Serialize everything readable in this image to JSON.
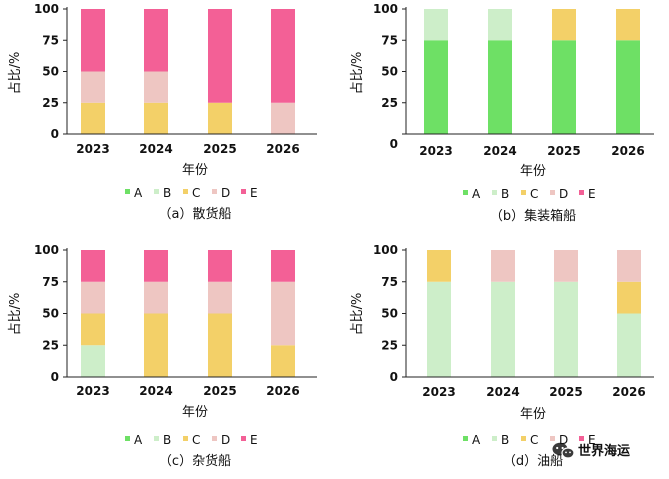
{
  "colors": {
    "A": "#6ee065",
    "B": "#cdeec9",
    "C": "#f3d068",
    "D": "#eec6c2",
    "E": "#f36096"
  },
  "watermark": {
    "text": "世界海运",
    "icon": "wechat-icon"
  },
  "chart_data": [
    {
      "type": "bar",
      "stacked": true,
      "caption": "（a）散货船",
      "xlabel": "年份",
      "ylabel": "占比/%",
      "ylim": [
        0,
        100
      ],
      "yticks": [
        0,
        25,
        50,
        75,
        100
      ],
      "categories": [
        "2023",
        "2024",
        "2025",
        "2026"
      ],
      "legend": [
        "A",
        "B",
        "C",
        "D",
        "E"
      ],
      "series": [
        {
          "name": "A",
          "values": [
            0,
            0,
            0,
            0
          ]
        },
        {
          "name": "B",
          "values": [
            0,
            0,
            0,
            0
          ]
        },
        {
          "name": "C",
          "values": [
            25,
            25,
            25,
            0
          ]
        },
        {
          "name": "D",
          "values": [
            25,
            25,
            0,
            25
          ]
        },
        {
          "name": "E",
          "values": [
            50,
            50,
            75,
            75
          ]
        }
      ]
    },
    {
      "type": "bar",
      "stacked": true,
      "caption": "（b）集装箱船",
      "xlabel": "年份",
      "ylabel": "占比/%",
      "ylim": [
        0,
        100
      ],
      "yticks": [
        0,
        25,
        50,
        75,
        100
      ],
      "categories": [
        "2023",
        "2024",
        "2025",
        "2026"
      ],
      "legend": [
        "A",
        "B",
        "C",
        "D",
        "E"
      ],
      "series": [
        {
          "name": "A",
          "values": [
            75,
            75,
            75,
            75
          ]
        },
        {
          "name": "B",
          "values": [
            25,
            25,
            0,
            0
          ]
        },
        {
          "name": "C",
          "values": [
            0,
            0,
            25,
            25
          ]
        },
        {
          "name": "D",
          "values": [
            0,
            0,
            0,
            0
          ]
        },
        {
          "name": "E",
          "values": [
            0,
            0,
            0,
            0
          ]
        }
      ]
    },
    {
      "type": "bar",
      "stacked": true,
      "caption": "（c）杂货船",
      "xlabel": "年份",
      "ylabel": "占比/%",
      "ylim": [
        0,
        100
      ],
      "yticks": [
        0,
        25,
        50,
        75,
        100
      ],
      "categories": [
        "2023",
        "2024",
        "2025",
        "2026"
      ],
      "legend": [
        "A",
        "B",
        "C",
        "D",
        "E"
      ],
      "series": [
        {
          "name": "A",
          "values": [
            0,
            0,
            0,
            0
          ]
        },
        {
          "name": "B",
          "values": [
            25,
            0,
            0,
            0
          ]
        },
        {
          "name": "C",
          "values": [
            25,
            50,
            50,
            25
          ]
        },
        {
          "name": "D",
          "values": [
            25,
            25,
            25,
            50
          ]
        },
        {
          "name": "E",
          "values": [
            25,
            25,
            25,
            25
          ]
        }
      ]
    },
    {
      "type": "bar",
      "stacked": true,
      "caption": "（d）油船",
      "xlabel": "年份",
      "ylabel": "占比/%",
      "ylim": [
        0,
        100
      ],
      "yticks": [
        0,
        25,
        50,
        75,
        100
      ],
      "categories": [
        "2023",
        "2024",
        "2025",
        "2026"
      ],
      "legend": [
        "A",
        "B",
        "C",
        "D",
        "E"
      ],
      "series": [
        {
          "name": "A",
          "values": [
            0,
            0,
            0,
            0
          ]
        },
        {
          "name": "B",
          "values": [
            75,
            75,
            75,
            50
          ]
        },
        {
          "name": "C",
          "values": [
            25,
            0,
            0,
            25
          ]
        },
        {
          "name": "D",
          "values": [
            0,
            25,
            25,
            25
          ]
        },
        {
          "name": "E",
          "values": [
            0,
            0,
            0,
            0
          ]
        }
      ]
    }
  ]
}
